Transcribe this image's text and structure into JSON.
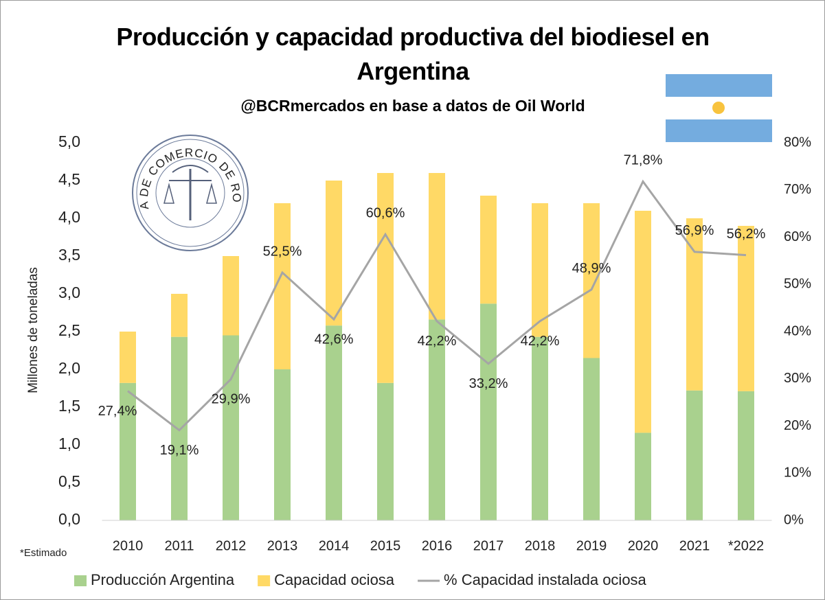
{
  "chart_data": {
    "type": "bar",
    "title": "Producción y capacidad productiva del biodiesel en Argentina",
    "subtitle": "@BCRmercados en base a datos de Oil World",
    "y_label": "Millones de toneladas",
    "annotation": "*Estimado",
    "logo_text": "BOLSA DE COMERCIO DE ROSARIO",
    "stacked": true,
    "categories": [
      "2010",
      "2011",
      "2012",
      "2013",
      "2014",
      "2015",
      "2016",
      "2017",
      "2018",
      "2019",
      "2020",
      "2021",
      "*2022"
    ],
    "series": [
      {
        "name": "Producción Argentina",
        "color": "#a9d18e",
        "values": [
          1.82,
          2.43,
          2.45,
          2.0,
          2.58,
          1.82,
          2.66,
          2.87,
          2.43,
          2.15,
          1.16,
          1.72,
          1.71
        ]
      },
      {
        "name": "Capacidad ociosa",
        "color": "#ffd966",
        "values": [
          0.68,
          0.57,
          1.05,
          2.2,
          1.92,
          2.78,
          1.94,
          1.43,
          1.77,
          2.05,
          2.94,
          2.28,
          2.19
        ]
      },
      {
        "name": "% Capacidad instalada ociosa",
        "type": "line",
        "axis": "y2",
        "color": "#a5a5a5",
        "values": [
          27.4,
          19.1,
          29.9,
          52.5,
          42.6,
          60.6,
          42.2,
          33.2,
          42.2,
          48.9,
          71.8,
          56.9,
          56.2
        ],
        "value_labels": [
          "27,4%",
          "19,1%",
          "29,9%",
          "52,5%",
          "42,6%",
          "60,6%",
          "42,2%",
          "33,2%",
          "42,2%",
          "48,9%",
          "71,8%",
          "56,9%",
          "56,2%"
        ]
      }
    ],
    "ylim": [
      0,
      5
    ],
    "yticks": [
      {
        "value": 0,
        "label": "0,0"
      },
      {
        "value": 0.5,
        "label": "0,5"
      },
      {
        "value": 1,
        "label": "1,0"
      },
      {
        "value": 1.5,
        "label": "1,5"
      },
      {
        "value": 2,
        "label": "2,0"
      },
      {
        "value": 2.5,
        "label": "2,5"
      },
      {
        "value": 3,
        "label": "3,0"
      },
      {
        "value": 3.5,
        "label": "3,5"
      },
      {
        "value": 4,
        "label": "4,0"
      },
      {
        "value": 4.5,
        "label": "4,5"
      },
      {
        "value": 5,
        "label": "5,0"
      }
    ],
    "y2lim": [
      0,
      80
    ],
    "y2ticks": [
      {
        "value": 0,
        "label": "0%"
      },
      {
        "value": 10,
        "label": "10%"
      },
      {
        "value": 20,
        "label": "20%"
      },
      {
        "value": 30,
        "label": "30%"
      },
      {
        "value": 40,
        "label": "40%"
      },
      {
        "value": 50,
        "label": "50%"
      },
      {
        "value": 60,
        "label": "60%"
      },
      {
        "value": 70,
        "label": "70%"
      },
      {
        "value": 80,
        "label": "80%"
      }
    ],
    "grid": false,
    "legend": "bottom"
  }
}
